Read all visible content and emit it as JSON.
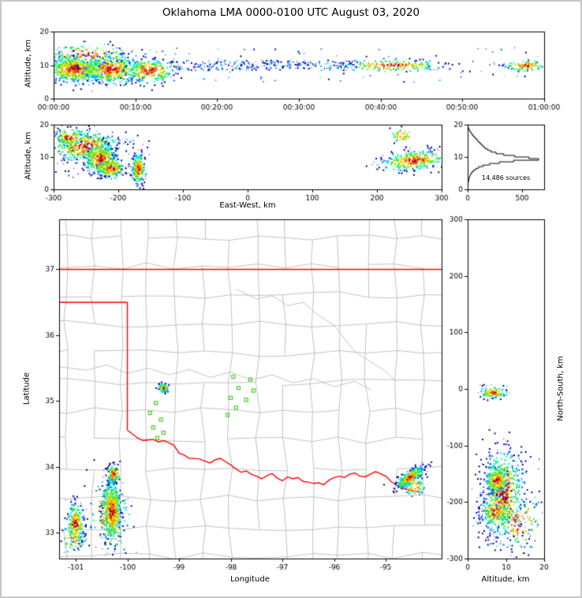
{
  "title": "Oklahoma LMA 0000-0100 UTC August 03, 2020",
  "labels": {
    "altitude_y_time": "Altitude, km",
    "altitude_y_ew": "Altitude, km",
    "east_west": "East-West, km",
    "latitude": "Latitude",
    "longitude": "Longitude",
    "north_south": "North-South, km",
    "altitude_x_ns": "Altitude, km"
  },
  "colors": {
    "state_border": "#ff0000",
    "county": "#b3b3b3",
    "river": "#bcbcbc",
    "axis": "#000000",
    "station": "#44cc22",
    "histogram": "#000000"
  },
  "palette": [
    "#00008b",
    "#0000f0",
    "#0066ff",
    "#00ccff",
    "#00ffcc",
    "#00e060",
    "#55e000",
    "#b8e000",
    "#ffe000",
    "#ffa000",
    "#ff4400",
    "#b00000"
  ],
  "seed": 42,
  "chart_data": [
    {
      "id": "time",
      "type": "scatter",
      "title": "Altitude vs time of lightning sources",
      "xlabel": "",
      "ylabel": "Altitude, km",
      "xlim": [
        0,
        3600
      ],
      "ylim": [
        0,
        20
      ],
      "xticks": [
        {
          "v": 0,
          "l": "00:00:00"
        },
        {
          "v": 600,
          "l": "00:10:00"
        },
        {
          "v": 1200,
          "l": "00:20:00"
        },
        {
          "v": 1800,
          "l": "00:30:00"
        },
        {
          "v": 2400,
          "l": "00:40:00"
        },
        {
          "v": 3000,
          "l": "00:50:00"
        },
        {
          "v": 3600,
          "l": "01:00:00"
        }
      ],
      "yticks": [
        0,
        10,
        20
      ],
      "clusters": [
        {
          "cx": 150,
          "cy": 9.0,
          "sx": 110,
          "sy": 2.0,
          "n": 650
        },
        {
          "cx": 420,
          "cy": 9.0,
          "sx": 110,
          "sy": 2.2,
          "n": 480
        },
        {
          "cx": 700,
          "cy": 8.5,
          "sx": 90,
          "sy": 1.8,
          "n": 280
        },
        {
          "cx": 260,
          "cy": 13.5,
          "sx": 160,
          "sy": 1.4,
          "n": 140
        },
        {
          "cx": 2480,
          "cy": 10.1,
          "sx": 190,
          "sy": 0.9,
          "n": 200
        },
        {
          "cx": 3460,
          "cy": 10.0,
          "sx": 80,
          "sy": 0.8,
          "n": 120
        }
      ],
      "bands": [
        {
          "x0": 850,
          "x1": 2250,
          "y0": 8.7,
          "y1": 11.6,
          "n": 240
        },
        {
          "x0": 60,
          "x1": 3580,
          "y0": 5.0,
          "y1": 15.5,
          "n": 110
        }
      ]
    },
    {
      "id": "ew",
      "type": "scatter",
      "title": "Altitude vs east-west distance",
      "xlabel": "East-West, km",
      "ylabel": "Altitude, km",
      "xlim": [
        -300,
        300
      ],
      "ylim": [
        0,
        20
      ],
      "xticks": [
        -300,
        -200,
        -100,
        0,
        100,
        200,
        300
      ],
      "yticks": [
        0,
        10,
        20
      ],
      "clusters": [
        {
          "cx": -252,
          "cy": 13.5,
          "sx": 26,
          "sy": 2.3,
          "n": 420
        },
        {
          "cx": -228,
          "cy": 9.5,
          "sx": 13,
          "sy": 2.3,
          "n": 400
        },
        {
          "cx": -212,
          "cy": 6.8,
          "sx": 11,
          "sy": 1.6,
          "n": 180
        },
        {
          "cx": -276,
          "cy": 16.2,
          "sx": 13,
          "sy": 1.4,
          "n": 110
        },
        {
          "cx": -170,
          "cy": 6.5,
          "sx": 5,
          "sy": 2.4,
          "n": 240
        },
        {
          "cx": 256,
          "cy": 9.2,
          "sx": 25,
          "sy": 1.5,
          "n": 360,
          "slope": 0.02
        },
        {
          "cx": 237,
          "cy": 16.8,
          "sx": 9,
          "sy": 1.1,
          "n": 45
        }
      ],
      "bands": [
        {
          "x0": -300,
          "x1": -150,
          "y0": 3,
          "y1": 18,
          "n": 70
        }
      ]
    },
    {
      "id": "hist",
      "type": "line",
      "title": "Source count profile by altitude",
      "xlabel": "",
      "ylabel": "",
      "xlim": [
        0,
        700
      ],
      "ylim": [
        0,
        20
      ],
      "xticks": [
        0,
        500
      ],
      "yticks": [
        0,
        10,
        20
      ],
      "bin_km": 0.5,
      "counts": [
        0,
        1,
        2,
        4,
        6,
        9,
        12,
        16,
        22,
        30,
        40,
        55,
        75,
        100,
        140,
        200,
        290,
        420,
        650,
        560,
        430,
        330,
        260,
        215,
        185,
        160,
        145,
        130,
        115,
        100,
        88,
        74,
        60,
        48,
        36,
        26,
        17,
        10,
        5,
        2
      ],
      "annotation": "14,486 sources"
    },
    {
      "id": "map",
      "type": "scatter",
      "title": "Plan view map of lightning sources over Oklahoma",
      "xlabel": "Longitude",
      "ylabel": "Latitude",
      "xlim": [
        -101.32,
        -93.92
      ],
      "ylim": [
        32.61,
        37.76
      ],
      "xticks": [
        -101,
        -100,
        -99,
        -98,
        -97,
        -96,
        -95
      ],
      "yticks": [
        33,
        34,
        35,
        36,
        37
      ],
      "clusters": [
        {
          "cx": -100.32,
          "cy": 33.35,
          "sx": 0.09,
          "sy": 0.22,
          "n": 600
        },
        {
          "cx": -100.28,
          "cy": 33.9,
          "sx": 0.06,
          "sy": 0.07,
          "n": 150
        },
        {
          "cx": -100.35,
          "cy": 33.3,
          "sx": 0.2,
          "sy": 0.3,
          "n": 150
        },
        {
          "cx": -101.02,
          "cy": 33.15,
          "sx": 0.08,
          "sy": 0.16,
          "n": 240
        },
        {
          "cx": -101.05,
          "cy": 32.92,
          "sx": 0.12,
          "sy": 0.1,
          "n": 70
        },
        {
          "cx": -99.32,
          "cy": 35.21,
          "sx": 0.05,
          "sy": 0.035,
          "n": 85
        },
        {
          "cx": -94.55,
          "cy": 33.85,
          "sx": 0.13,
          "sy": 0.055,
          "n": 340,
          "slope": 0.45
        },
        {
          "cx": -94.45,
          "cy": 33.7,
          "sx": 0.1,
          "sy": 0.07,
          "n": 55
        }
      ],
      "stations": [
        [
          -97.95,
          35.37
        ],
        [
          -97.62,
          35.33
        ],
        [
          -97.85,
          35.2
        ],
        [
          -97.56,
          35.16
        ],
        [
          -98.0,
          35.05
        ],
        [
          -97.7,
          35.02
        ],
        [
          -97.9,
          34.9
        ],
        [
          -98.06,
          34.79
        ],
        [
          -99.45,
          34.97
        ],
        [
          -99.56,
          34.82
        ],
        [
          -99.35,
          34.72
        ],
        [
          -99.5,
          34.6
        ],
        [
          -99.3,
          34.52
        ],
        [
          -99.42,
          34.44
        ]
      ],
      "county_grid": {
        "dlon": 0.53,
        "dlat": 0.44,
        "jitter": 0.055,
        "skip": 0.07
      },
      "rivers": [
        [
          [
            -101.3,
            35.52
          ],
          [
            -100.8,
            35.47
          ],
          [
            -100.4,
            35.55
          ],
          [
            -100.0,
            35.42
          ],
          [
            -99.6,
            35.5
          ],
          [
            -99.2,
            35.4
          ],
          [
            -98.8,
            35.48
          ],
          [
            -98.4,
            35.36
          ],
          [
            -98.0,
            35.44
          ],
          [
            -97.6,
            35.32
          ],
          [
            -97.2,
            35.4
          ],
          [
            -96.8,
            35.28
          ],
          [
            -96.4,
            35.34
          ],
          [
            -96.0,
            35.22
          ],
          [
            -95.6,
            35.3
          ],
          [
            -95.3,
            35.18
          ]
        ],
        [
          [
            -97.9,
            36.7
          ],
          [
            -97.5,
            36.55
          ],
          [
            -97.2,
            36.6
          ],
          [
            -96.9,
            36.45
          ],
          [
            -96.6,
            36.5
          ],
          [
            -96.3,
            36.3
          ],
          [
            -96.0,
            36.15
          ],
          [
            -95.8,
            35.95
          ],
          [
            -95.6,
            35.75
          ],
          [
            -95.3,
            35.6
          ],
          [
            -95.0,
            35.45
          ],
          [
            -94.8,
            35.3
          ]
        ]
      ],
      "state_lines": [
        [
          [
            -101.32,
            37.0
          ],
          [
            -93.92,
            37.0
          ]
        ],
        [
          [
            -101.32,
            36.5
          ],
          [
            -100.0,
            36.5
          ]
        ],
        [
          [
            -100.0,
            36.5
          ],
          [
            -100.0,
            34.56
          ]
        ],
        [
          [
            -100.0,
            34.56
          ],
          [
            -99.9,
            34.5
          ],
          [
            -99.8,
            34.44
          ],
          [
            -99.7,
            34.4
          ],
          [
            -99.6,
            34.41
          ],
          [
            -99.5,
            34.42
          ],
          [
            -99.4,
            34.38
          ],
          [
            -99.3,
            34.4
          ],
          [
            -99.2,
            34.37
          ],
          [
            -99.1,
            34.33
          ],
          [
            -99.0,
            34.21
          ],
          [
            -98.9,
            34.18
          ],
          [
            -98.8,
            34.13
          ],
          [
            -98.7,
            34.13
          ],
          [
            -98.6,
            34.12
          ],
          [
            -98.5,
            34.09
          ],
          [
            -98.4,
            34.06
          ],
          [
            -98.3,
            34.11
          ],
          [
            -98.2,
            34.13
          ],
          [
            -98.1,
            34.08
          ],
          [
            -98.0,
            34.03
          ],
          [
            -97.9,
            33.97
          ],
          [
            -97.8,
            33.92
          ],
          [
            -97.7,
            33.94
          ],
          [
            -97.6,
            33.89
          ],
          [
            -97.5,
            33.86
          ],
          [
            -97.4,
            33.82
          ],
          [
            -97.3,
            33.87
          ],
          [
            -97.2,
            33.9
          ],
          [
            -97.1,
            33.83
          ],
          [
            -97.0,
            33.79
          ],
          [
            -96.9,
            33.85
          ],
          [
            -96.8,
            33.82
          ],
          [
            -96.7,
            33.84
          ],
          [
            -96.6,
            33.78
          ],
          [
            -96.5,
            33.77
          ],
          [
            -96.4,
            33.75
          ],
          [
            -96.3,
            33.76
          ],
          [
            -96.2,
            33.73
          ],
          [
            -96.1,
            33.8
          ],
          [
            -96.0,
            33.84
          ],
          [
            -95.9,
            33.86
          ],
          [
            -95.8,
            33.84
          ],
          [
            -95.7,
            33.89
          ],
          [
            -95.6,
            33.91
          ],
          [
            -95.5,
            33.86
          ],
          [
            -95.4,
            33.85
          ],
          [
            -95.3,
            33.89
          ],
          [
            -95.2,
            33.93
          ],
          [
            -95.1,
            33.9
          ],
          [
            -95.0,
            33.86
          ],
          [
            -94.9,
            33.78
          ],
          [
            -94.8,
            33.73
          ],
          [
            -94.7,
            33.68
          ],
          [
            -94.6,
            33.66
          ],
          [
            -94.5,
            33.64
          ],
          [
            -94.43,
            33.63
          ],
          [
            -94.35,
            33.62
          ]
        ]
      ]
    },
    {
      "id": "ns",
      "type": "scatter",
      "title": "North-south distance vs altitude",
      "xlabel": "Altitude, km",
      "ylabel": "North-South, km",
      "xlim": [
        0,
        20
      ],
      "ylim": [
        -300,
        300
      ],
      "xticks": [
        0,
        10,
        20
      ],
      "yticks": [
        300,
        200,
        100,
        0,
        -100,
        -200,
        -300
      ],
      "clusters": [
        {
          "cx": 9.0,
          "cy": -185,
          "sx": 2.6,
          "sy": 38,
          "n": 650
        },
        {
          "cx": 7.5,
          "cy": -160,
          "sx": 1.5,
          "sy": 12,
          "n": 250
        },
        {
          "cx": 7.0,
          "cy": -215,
          "sx": 1.8,
          "sy": 15,
          "n": 200
        },
        {
          "cx": 13.0,
          "cy": -235,
          "sx": 3.0,
          "sy": 25,
          "n": 150
        },
        {
          "cx": 6.5,
          "cy": -5,
          "sx": 1.8,
          "sy": 5,
          "n": 130
        }
      ],
      "bands": [
        {
          "x0": 2,
          "x1": 19,
          "y0": -280,
          "y1": -110,
          "n": 90
        }
      ]
    }
  ]
}
